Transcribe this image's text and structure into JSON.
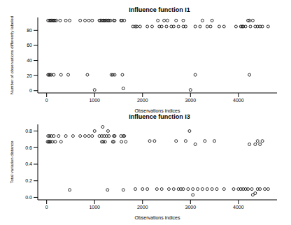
{
  "chart_data": [
    {
      "type": "scatter",
      "title": "Influence function I1",
      "x_label": "Observations indices",
      "y_label": "Number of observations differently labeled",
      "color": "#000000",
      "marker": "circle",
      "xlim": [
        -185,
        4805
      ],
      "ylim": [
        -3,
        97
      ],
      "xticks": [
        0,
        1000,
        2000,
        3000,
        4000
      ],
      "yticks": [
        0,
        20,
        40,
        60,
        80
      ],
      "x": [
        30,
        60,
        80,
        100,
        130,
        150,
        170,
        200,
        280,
        400,
        480,
        700,
        800,
        880,
        950,
        1100,
        1120,
        1150,
        1180,
        1200,
        1220,
        1250,
        1280,
        1300,
        1330,
        1400,
        1420,
        1550,
        1570,
        1620,
        2320,
        2450,
        2520,
        2700,
        2850,
        3250,
        3450,
        4200,
        4230,
        4300,
        1800,
        1850,
        1880,
        1950,
        2100,
        2200,
        2350,
        2400,
        2500,
        2600,
        2650,
        2750,
        2850,
        2900,
        3100,
        3200,
        3350,
        3420,
        3600,
        3700,
        3950,
        4050,
        4080,
        4100,
        4150,
        4250,
        4350,
        4400,
        4450,
        4500,
        4620,
        30,
        50,
        70,
        100,
        150,
        300,
        450,
        850,
        1350,
        1380,
        1420,
        1580,
        3100,
        4230,
        1000,
        1600,
        3000
      ],
      "values": [
        93,
        93,
        93,
        93,
        93,
        93,
        93,
        93,
        93,
        93,
        93,
        93,
        93,
        93,
        93,
        93,
        93,
        93,
        93,
        93,
        93,
        93,
        93,
        93,
        93,
        93,
        93,
        93,
        93,
        93,
        93,
        93,
        93,
        93,
        93,
        93,
        93,
        93,
        93,
        93,
        85,
        85,
        85,
        85,
        85,
        85,
        85,
        85,
        85,
        85,
        85,
        85,
        85,
        85,
        85,
        85,
        85,
        85,
        85,
        85,
        85,
        85,
        85,
        85,
        85,
        85,
        85,
        85,
        85,
        85,
        85,
        21,
        21,
        21,
        21,
        21,
        21,
        21,
        21,
        21,
        21,
        21,
        21,
        21,
        21,
        1,
        3,
        1
      ]
    },
    {
      "type": "scatter",
      "title": "Influence function I3",
      "x_label": "Observations indices",
      "y_label": "Total variation distance",
      "color": "#000000",
      "marker": "circle",
      "xlim": [
        -185,
        4805
      ],
      "ylim": [
        -0.03,
        0.88
      ],
      "xticks": [
        0,
        1000,
        2000,
        3000,
        4000
      ],
      "yticks": [
        {
          "value": 0,
          "label": "0.0"
        },
        0.2,
        0.4,
        0.6,
        0.8
      ],
      "x": [
        30,
        60,
        100,
        150,
        250,
        400,
        550,
        700,
        800,
        880,
        950,
        1100,
        1150,
        1200,
        1250,
        1300,
        1400,
        1420,
        1550,
        1600,
        1620,
        20,
        40,
        60,
        80,
        120,
        180,
        300,
        1150,
        1180,
        1220,
        1380,
        1400,
        1560,
        1650,
        3100,
        4230,
        4350,
        4450,
        1000,
        1170,
        1280,
        2980,
        2150,
        2250,
        2700,
        2900,
        3300,
        3500,
        4400,
        4500,
        480,
        1270,
        1600,
        1850,
        2000,
        2100,
        2300,
        2400,
        2550,
        2650,
        2750,
        2800,
        2850,
        2950,
        3050,
        3150,
        3250,
        3350,
        3450,
        3550,
        3700,
        3900,
        4000,
        4050,
        4100,
        4150,
        4200,
        4280,
        4400,
        4450,
        4550,
        4620,
        3050,
        4300,
        4350
      ],
      "values": [
        0.74,
        0.74,
        0.74,
        0.74,
        0.74,
        0.74,
        0.74,
        0.74,
        0.74,
        0.74,
        0.74,
        0.74,
        0.74,
        0.74,
        0.74,
        0.74,
        0.74,
        0.74,
        0.74,
        0.74,
        0.74,
        0.67,
        0.67,
        0.67,
        0.67,
        0.67,
        0.67,
        0.67,
        0.67,
        0.67,
        0.67,
        0.67,
        0.67,
        0.67,
        0.67,
        0.64,
        0.64,
        0.64,
        0.64,
        0.8,
        0.85,
        0.8,
        0.8,
        0.68,
        0.68,
        0.68,
        0.68,
        0.68,
        0.68,
        0.68,
        0.68,
        0.09,
        0.09,
        0.09,
        0.1,
        0.1,
        0.1,
        0.1,
        0.1,
        0.1,
        0.1,
        0.1,
        0.1,
        0.1,
        0.1,
        0.1,
        0.1,
        0.1,
        0.1,
        0.1,
        0.1,
        0.1,
        0.1,
        0.1,
        0.1,
        0.1,
        0.1,
        0.1,
        0.1,
        0.1,
        0.1,
        0.1,
        0.1,
        0.03,
        0.03,
        0.05
      ]
    }
  ]
}
